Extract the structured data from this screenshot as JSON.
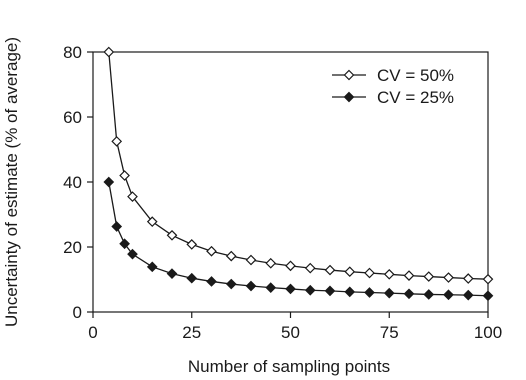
{
  "chart_data": {
    "type": "line",
    "title": "",
    "xlabel": "Number of sampling points",
    "ylabel": "Uncertainty of estimate (% of average)",
    "xlim": [
      0,
      100
    ],
    "ylim": [
      0,
      80
    ],
    "xticks": [
      0,
      25,
      50,
      75,
      100
    ],
    "yticks": [
      0,
      20,
      40,
      60,
      80
    ],
    "grid": false,
    "legend_position": "top-right",
    "series": [
      {
        "name": "CV = 50%",
        "marker": "open-diamond",
        "color": "#1a1a1a",
        "x": [
          4,
          6,
          8,
          10,
          15,
          20,
          25,
          30,
          35,
          40,
          45,
          50,
          55,
          60,
          65,
          70,
          75,
          80,
          85,
          90,
          95,
          100
        ],
        "y": [
          80,
          52.5,
          42,
          35.5,
          27.8,
          23.6,
          20.8,
          18.7,
          17.2,
          16.0,
          15.0,
          14.2,
          13.5,
          12.9,
          12.4,
          12.0,
          11.6,
          11.2,
          10.9,
          10.6,
          10.3,
          10.1
        ]
      },
      {
        "name": "CV = 25%",
        "marker": "filled-diamond",
        "color": "#1a1a1a",
        "x": [
          4,
          6,
          8,
          10,
          15,
          20,
          25,
          30,
          35,
          40,
          45,
          50,
          55,
          60,
          65,
          70,
          75,
          80,
          85,
          90,
          95,
          100
        ],
        "y": [
          40,
          26.3,
          21,
          17.8,
          13.9,
          11.8,
          10.4,
          9.4,
          8.6,
          8.0,
          7.5,
          7.1,
          6.7,
          6.5,
          6.2,
          6.0,
          5.8,
          5.6,
          5.4,
          5.3,
          5.2,
          5.0
        ]
      }
    ]
  }
}
